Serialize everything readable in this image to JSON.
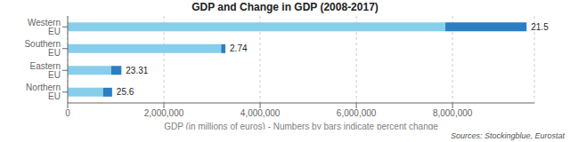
{
  "chart_data": {
    "type": "bar",
    "title": "GDP and Change in GDP (2008-2017)",
    "orientation": "horizontal",
    "stacked": true,
    "grid": true,
    "categories": [
      "Western EU",
      "Southern EU",
      "Eastern EU",
      "Northern EU"
    ],
    "series": [
      {
        "color": "#87CEEB",
        "values": [
          7850000,
          3190000,
          905000,
          735000
        ]
      },
      {
        "color": "#2B7EC1",
        "values": [
          1687750,
          87456,
          210955,
          188160
        ]
      }
    ],
    "annotations": [
      "21.5",
      "2.74",
      "23.31",
      "25.6"
    ],
    "xlabel": "GDP (in millions of euros) - Numbers by bars indicate percent change",
    "source": "Sources: Stockingblue, Eurostat",
    "xlim": [
      0,
      9700000
    ],
    "xticks": [
      0,
      {
        "value": 2000000,
        "label": "2,000,000"
      },
      {
        "value": 4000000,
        "label": "4,000,000"
      },
      {
        "value": 6000000,
        "label": "6,000,000"
      },
      {
        "value": 8000000,
        "label": "8,000,000"
      }
    ]
  }
}
